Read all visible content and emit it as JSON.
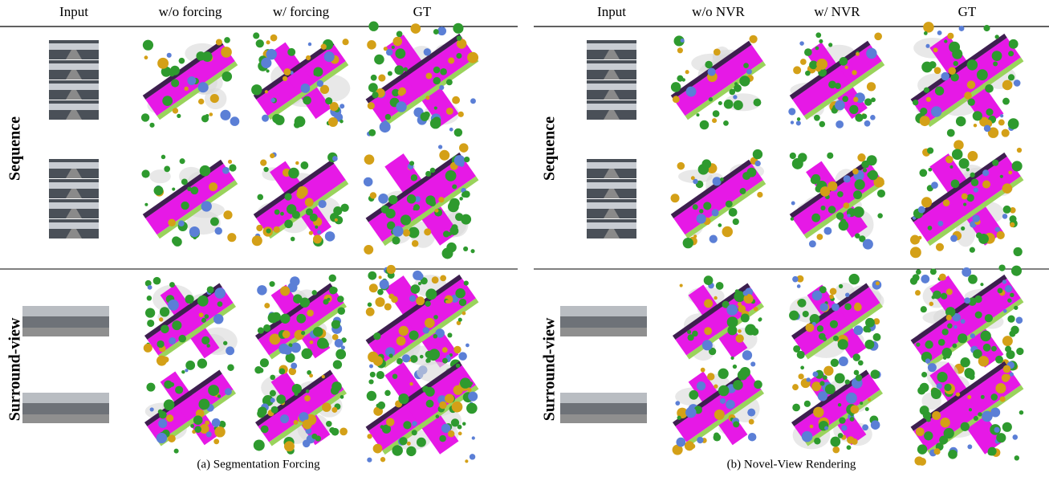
{
  "panels": [
    {
      "columns": [
        "Input",
        "w/o forcing",
        "w/ forcing",
        "GT"
      ],
      "row_groups": [
        "Sequence",
        "Surround-view"
      ],
      "caption": "(a) Segmentation Forcing"
    },
    {
      "columns": [
        "Input",
        "w/o NVR",
        "w/ NVR",
        "GT"
      ],
      "row_groups": [
        "Sequence",
        "Surround-view"
      ],
      "caption": "(b) Novel-View Rendering"
    }
  ]
}
